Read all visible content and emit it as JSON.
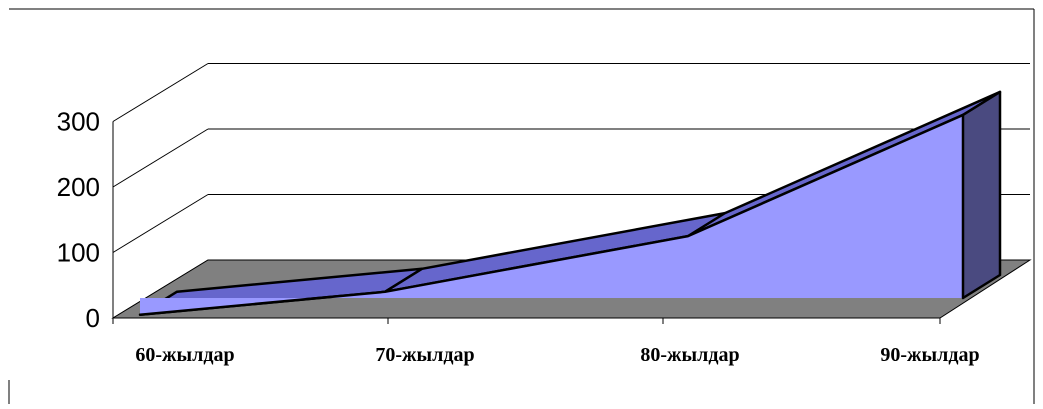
{
  "chart_data": {
    "type": "area",
    "style": "3d",
    "categories": [
      "60-жылдар",
      "70-жылдар",
      "80-жылдар",
      "90-жылдар"
    ],
    "values": [
      5,
      40,
      125,
      310
    ],
    "ylim": [
      0,
      300
    ],
    "yticks": [
      0,
      100,
      200,
      300
    ],
    "grid": true,
    "legend": "none",
    "colors": {
      "front": "#9999ff",
      "top": "#6666cc",
      "side": "#4a4a80",
      "floor": "#808080",
      "edge": "#000000"
    }
  }
}
